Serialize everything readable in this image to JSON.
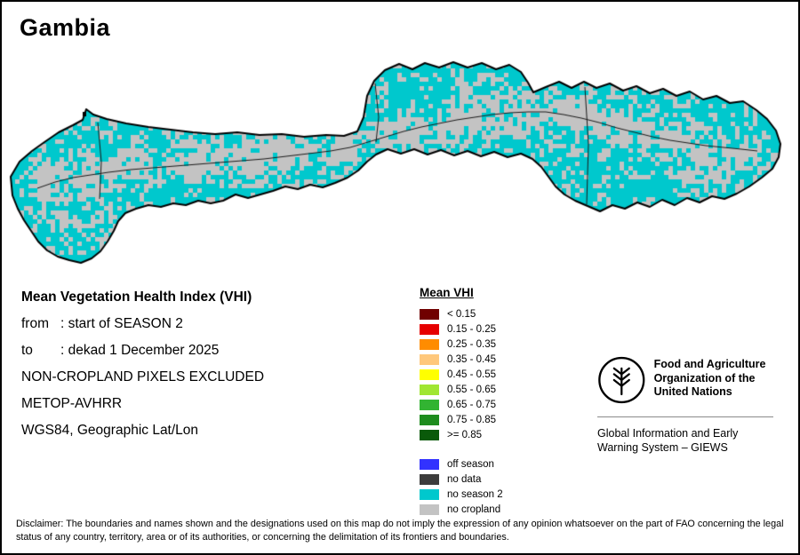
{
  "title": "Gambia",
  "info": {
    "heading": "Mean Vegetation Health Index (VHI)",
    "rows": [
      {
        "label": "from",
        "value": ": start of SEASON 2"
      },
      {
        "label": "to",
        "value": ": dekad 1 December 2025"
      }
    ],
    "lines": [
      "NON-CROPLAND PIXELS EXCLUDED",
      "METOP-AVHRR",
      "WGS84, Geographic Lat/Lon"
    ]
  },
  "legend": {
    "title": "Mean VHI",
    "classes": [
      {
        "label": "< 0.15",
        "color": "#700000"
      },
      {
        "label": "0.15 - 0.25",
        "color": "#e60000"
      },
      {
        "label": "0.25 - 0.35",
        "color": "#ff8c00"
      },
      {
        "label": "0.35 - 0.45",
        "color": "#ffc87c"
      },
      {
        "label": "0.45 - 0.55",
        "color": "#ffff00"
      },
      {
        "label": "0.55 - 0.65",
        "color": "#a0e632"
      },
      {
        "label": "0.65 - 0.75",
        "color": "#32b432"
      },
      {
        "label": "0.75 - 0.85",
        "color": "#1e8c1e"
      },
      {
        "label": ">= 0.85",
        "color": "#0a5a0a"
      }
    ],
    "extras": [
      {
        "label": "off season",
        "color": "#3232ff"
      },
      {
        "label": "no data",
        "color": "#3c3c3c"
      },
      {
        "label": "no season 2",
        "color": "#00c8cd"
      },
      {
        "label": "no cropland",
        "color": "#c3c3c3"
      }
    ]
  },
  "fao": {
    "org_name": "Food and Agriculture Organization of the United Nations",
    "giews_name": "Global Information and Early Warning System – GIEWS"
  },
  "map": {
    "colors": {
      "no_season_2": "#00c8cd",
      "no_cropland": "#c3c3c3",
      "outline": "#000000"
    }
  },
  "disclaimer": "Disclaimer: The boundaries and names shown and the designations used on this map do not imply the expression of any opinion whatsoever on the part of FAO concerning the legal status of any country, territory, area or of its authorities, or concerning the delimitation of its frontiers and boundaries."
}
